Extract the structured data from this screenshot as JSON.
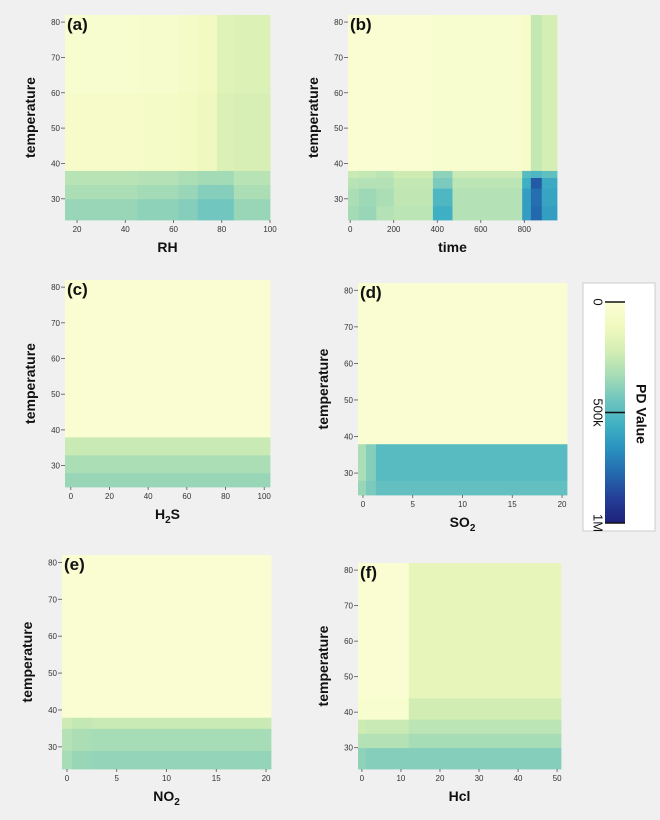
{
  "chart_data": [
    {
      "type": "heatmap",
      "panel_label": "(a)",
      "xlabel": "RH",
      "ylabel": "temperature",
      "xlim": [
        15,
        100
      ],
      "ylim": [
        24,
        82
      ],
      "xticks": [
        20,
        40,
        60,
        80,
        100
      ],
      "xtick_labels": [
        "20",
        "40",
        "60",
        "80",
        "100"
      ],
      "yticks": [
        30,
        40,
        50,
        60,
        70,
        80
      ],
      "ytick_labels": [
        "30",
        "40",
        "50",
        "60",
        "70",
        "80"
      ],
      "x_edges": [
        15,
        25,
        45,
        62,
        70,
        78,
        85,
        100
      ],
      "y_edges": [
        24,
        30,
        34,
        38,
        60,
        82
      ],
      "values": [
        [
          360000,
          360000,
          380000,
          400000,
          440000,
          440000,
          360000
        ],
        [
          320000,
          320000,
          340000,
          360000,
          400000,
          400000,
          320000
        ],
        [
          290000,
          290000,
          300000,
          320000,
          340000,
          340000,
          290000
        ],
        [
          60000,
          60000,
          70000,
          90000,
          120000,
          200000,
          210000
        ],
        [
          30000,
          30000,
          40000,
          70000,
          100000,
          180000,
          190000
        ]
      ]
    },
    {
      "type": "heatmap",
      "panel_label": "(b)",
      "xlabel": "time",
      "ylabel": "temperature",
      "xlim": [
        -10,
        950
      ],
      "ylim": [
        24,
        82
      ],
      "xticks": [
        0,
        200,
        400,
        600,
        800
      ],
      "xtick_labels": [
        "0",
        "200",
        "400",
        "600",
        "800"
      ],
      "yticks": [
        30,
        40,
        50,
        60,
        70,
        80
      ],
      "ytick_labels": [
        "30",
        "40",
        "50",
        "60",
        "70",
        "80"
      ],
      "x_edges": [
        -10,
        40,
        120,
        200,
        380,
        470,
        790,
        830,
        880,
        950
      ],
      "y_edges": [
        24,
        28,
        33,
        36,
        38,
        82
      ],
      "values": [
        [
          340000,
          360000,
          300000,
          280000,
          560000,
          300000,
          620000,
          780000,
          620000
        ],
        [
          320000,
          350000,
          320000,
          270000,
          520000,
          300000,
          620000,
          760000,
          600000
        ],
        [
          290000,
          300000,
          300000,
          260000,
          420000,
          280000,
          560000,
          820000,
          580000
        ],
        [
          250000,
          260000,
          280000,
          240000,
          380000,
          250000,
          500000,
          520000,
          480000
        ],
        [
          20000,
          20000,
          20000,
          20000,
          30000,
          30000,
          60000,
          260000,
          220000
        ]
      ]
    },
    {
      "type": "heatmap",
      "panel_label": "(c)",
      "xlabel": "H2S",
      "ylabel": "temperature",
      "xlim": [
        -3,
        103
      ],
      "ylim": [
        24,
        82
      ],
      "xticks": [
        0,
        20,
        40,
        60,
        80,
        100
      ],
      "xtick_labels": [
        "0",
        "20",
        "40",
        "60",
        "80",
        "100"
      ],
      "yticks": [
        30,
        40,
        50,
        60,
        70,
        80
      ],
      "ytick_labels": [
        "30",
        "40",
        "50",
        "60",
        "70",
        "80"
      ],
      "x_edges": [
        -3,
        103
      ],
      "y_edges": [
        24,
        28,
        33,
        38,
        82
      ],
      "values": [
        [
          360000
        ],
        [
          320000
        ],
        [
          250000
        ],
        [
          20000
        ]
      ]
    },
    {
      "type": "heatmap",
      "panel_label": "(d)",
      "xlabel": "SO2",
      "ylabel": "temperature",
      "xlim": [
        -0.5,
        20.5
      ],
      "ylim": [
        24,
        82
      ],
      "xticks": [
        0,
        5,
        10,
        15,
        20
      ],
      "xtick_labels": [
        "0",
        "5",
        "10",
        "15",
        "20"
      ],
      "yticks": [
        30,
        40,
        50,
        60,
        70,
        80
      ],
      "ytick_labels": [
        "30",
        "40",
        "50",
        "60",
        "70",
        "80"
      ],
      "x_edges": [
        -0.5,
        0.3,
        1.3,
        20.5
      ],
      "y_edges": [
        24,
        28,
        38,
        82
      ],
      "values": [
        [
          360000,
          420000,
          470000
        ],
        [
          320000,
          400000,
          500000
        ],
        [
          20000,
          20000,
          20000
        ]
      ]
    },
    {
      "type": "heatmap",
      "panel_label": "(e)",
      "xlabel": "NO2",
      "ylabel": "temperature",
      "xlim": [
        -0.5,
        20.5
      ],
      "ylim": [
        24,
        82
      ],
      "xticks": [
        0,
        5,
        10,
        15,
        20
      ],
      "xtick_labels": [
        "0",
        "5",
        "10",
        "15",
        "20"
      ],
      "yticks": [
        30,
        40,
        50,
        60,
        70,
        80
      ],
      "ytick_labels": [
        "30",
        "40",
        "50",
        "60",
        "70",
        "80"
      ],
      "x_edges": [
        -0.5,
        0.5,
        2.5,
        20.5
      ],
      "y_edges": [
        24,
        29,
        35,
        38,
        82
      ],
      "values": [
        [
          330000,
          360000,
          370000
        ],
        [
          300000,
          320000,
          330000
        ],
        [
          240000,
          260000,
          250000
        ],
        [
          20000,
          20000,
          20000
        ]
      ]
    },
    {
      "type": "heatmap",
      "panel_label": "(f)",
      "xlabel": "Hcl",
      "ylabel": "temperature",
      "xlim": [
        -1,
        51
      ],
      "ylim": [
        24,
        82
      ],
      "xticks": [
        0,
        10,
        20,
        30,
        40,
        50
      ],
      "xtick_labels": [
        "0",
        "10",
        "20",
        "30",
        "40",
        "50"
      ],
      "yticks": [
        30,
        40,
        50,
        60,
        70,
        80
      ],
      "ytick_labels": [
        "30",
        "40",
        "50",
        "60",
        "70",
        "80"
      ],
      "x_edges": [
        -1,
        1,
        12,
        51
      ],
      "y_edges": [
        24,
        30,
        34,
        38,
        44,
        82
      ],
      "values": [
        [
          380000,
          400000,
          400000
        ],
        [
          300000,
          300000,
          330000
        ],
        [
          240000,
          250000,
          280000
        ],
        [
          30000,
          30000,
          230000
        ],
        [
          20000,
          20000,
          150000
        ]
      ]
    }
  ],
  "colorbar": {
    "title": "PD Value",
    "min": 0,
    "max": 1000000,
    "ticks": [
      0,
      500000,
      1000000
    ],
    "tick_labels": [
      "0",
      "500k",
      "1M"
    ],
    "colors": [
      "#fbfed5",
      "#f1f9bf",
      "#d4eeb3",
      "#a6dcb6",
      "#6fc5bf",
      "#40b1c3",
      "#2a90bf",
      "#2469ad",
      "#243e98",
      "#1d217a"
    ]
  }
}
